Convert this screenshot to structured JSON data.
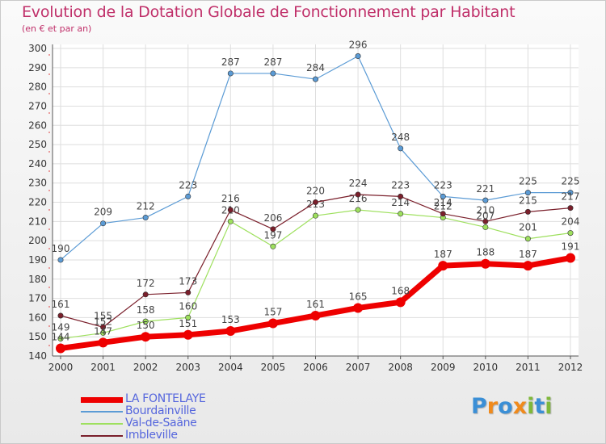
{
  "title": "Evolution de la Dotation Globale de Fonctionnement par Habitant",
  "subtitle": "(en € et par an)",
  "logo": {
    "text": "Proxiti",
    "colors": [
      "#3b8fd6",
      "#f08a1c",
      "#3b8fd6",
      "#f08a1c",
      "#7fb83a",
      "#3b8fd6",
      "#7fb83a"
    ]
  },
  "chart_data": {
    "type": "line",
    "x": [
      "2000",
      "2001",
      "2002",
      "2003",
      "2004",
      "2005",
      "2006",
      "2007",
      "2008",
      "2009",
      "2010",
      "2011",
      "2012"
    ],
    "ylim": [
      140,
      300
    ],
    "yticks": [
      140,
      150,
      160,
      170,
      180,
      190,
      200,
      210,
      220,
      230,
      240,
      250,
      260,
      270,
      280,
      290,
      300
    ],
    "grid": true,
    "legend_position": "bottom-left",
    "series": [
      {
        "name": "Bourdainville",
        "color": "#5b9bd5",
        "width": 1.2,
        "values": [
          190,
          209,
          212,
          223,
          287,
          287,
          284,
          296,
          248,
          223,
          221,
          225,
          225
        ],
        "labels": [
          "190",
          "209",
          "212",
          "223",
          "287",
          "287",
          "284",
          "296",
          "248",
          "223",
          "221",
          "225",
          "225"
        ]
      },
      {
        "name": "Val-de-Saâne",
        "color": "#9ee05e",
        "width": 1.2,
        "values": [
          149,
          152,
          158,
          160,
          210,
          197,
          213,
          216,
          214,
          212,
          207,
          201,
          204
        ],
        "labels": [
          "149",
          "152",
          "158",
          "160",
          "210",
          "197",
          "213",
          "216",
          "214",
          "212",
          "207",
          "201",
          "204"
        ]
      },
      {
        "name": "Imbleville",
        "color": "#7a1f2b",
        "width": 1.2,
        "values": [
          161,
          155,
          172,
          173,
          216,
          206,
          220,
          224,
          223,
          214,
          210,
          215,
          217
        ],
        "labels": [
          "161",
          "155",
          "172",
          "173",
          "216",
          "206",
          "220",
          "224",
          "223",
          "214",
          "210",
          "215",
          "217"
        ]
      },
      {
        "name": "LA FONTELAYE",
        "color": "#ee0000",
        "width": 7,
        "values": [
          144,
          147,
          150,
          151,
          153,
          157,
          161,
          165,
          168,
          187,
          188,
          187,
          191
        ],
        "labels": [
          "144",
          "147",
          "150",
          "151",
          "153",
          "157",
          "161",
          "165",
          "168",
          "187",
          "188",
          "187",
          "191"
        ]
      }
    ],
    "legend_order": [
      "LA FONTELAYE",
      "Bourdainville",
      "Val-de-Saâne",
      "Imbleville"
    ]
  }
}
